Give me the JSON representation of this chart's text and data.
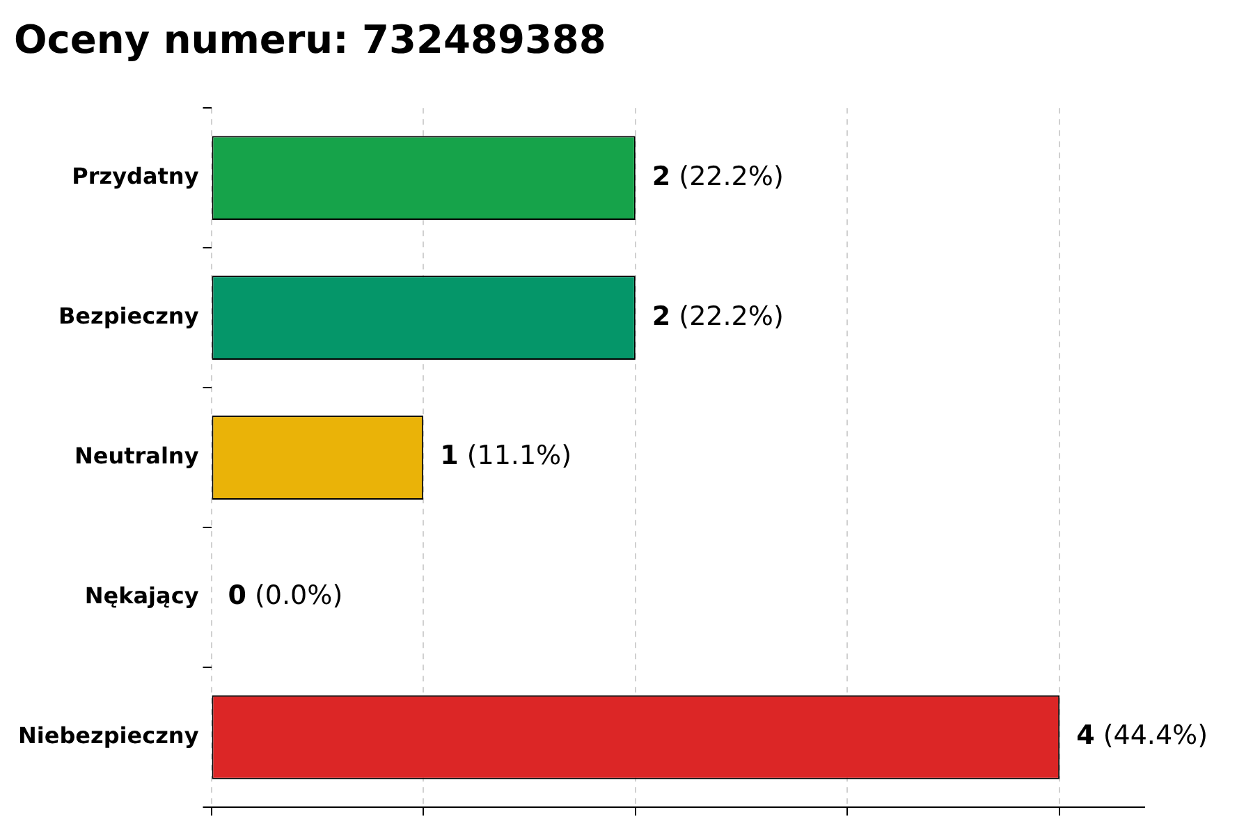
{
  "chart_data": {
    "type": "bar",
    "orientation": "horizontal",
    "title": "Oceny numeru: 732489388",
    "categories": [
      "Przydatny",
      "Bezpieczny",
      "Neutralny",
      "Nękający",
      "Niebezpieczny"
    ],
    "values": [
      2,
      2,
      1,
      0,
      4
    ],
    "colors": [
      "#16a34a",
      "#059669",
      "#eab308",
      "#f97316",
      "#dc2626"
    ],
    "value_labels": [
      "2 (22.2%)",
      "2 (22.2%)",
      "1 (11.1%)",
      "0 (0.0%)",
      "4 (44.4%)"
    ],
    "xlim": [
      0,
      4.4
    ],
    "xticks": [
      {
        "value": 0,
        "label": null
      },
      {
        "value": 1,
        "label": null
      },
      {
        "value": 2,
        "label": null
      },
      {
        "value": 3,
        "label": null
      },
      {
        "value": 4,
        "label": null
      }
    ],
    "tick_labels": "y",
    "grid": "x",
    "legend": false
  }
}
